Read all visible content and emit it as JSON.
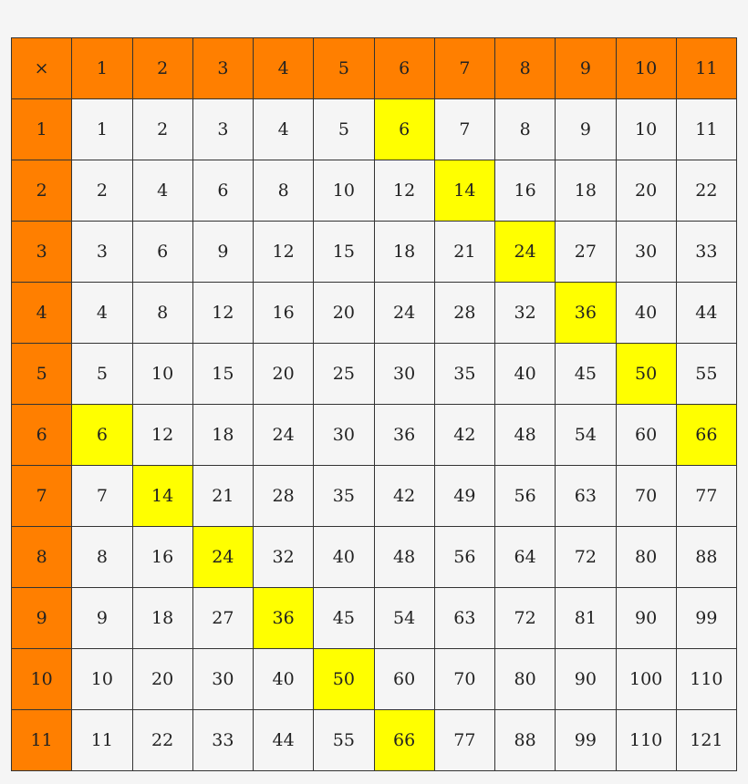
{
  "table": {
    "corner": "×",
    "column_headers": [
      "1",
      "2",
      "3",
      "4",
      "5",
      "6",
      "7",
      "8",
      "9",
      "10",
      "11"
    ],
    "rows": [
      {
        "header": "1",
        "values": [
          "1",
          "2",
          "3",
          "4",
          "5",
          "6",
          "7",
          "8",
          "9",
          "10",
          "11"
        ]
      },
      {
        "header": "2",
        "values": [
          "2",
          "4",
          "6",
          "8",
          "10",
          "12",
          "14",
          "16",
          "18",
          "20",
          "22"
        ]
      },
      {
        "header": "3",
        "values": [
          "3",
          "6",
          "9",
          "12",
          "15",
          "18",
          "21",
          "24",
          "27",
          "30",
          "33"
        ]
      },
      {
        "header": "4",
        "values": [
          "4",
          "8",
          "12",
          "16",
          "20",
          "24",
          "28",
          "32",
          "36",
          "40",
          "44"
        ]
      },
      {
        "header": "5",
        "values": [
          "5",
          "10",
          "15",
          "20",
          "25",
          "30",
          "35",
          "40",
          "45",
          "50",
          "55"
        ]
      },
      {
        "header": "6",
        "values": [
          "6",
          "12",
          "18",
          "24",
          "30",
          "36",
          "42",
          "48",
          "54",
          "60",
          "66"
        ]
      },
      {
        "header": "7",
        "values": [
          "7",
          "14",
          "21",
          "28",
          "35",
          "42",
          "49",
          "56",
          "63",
          "70",
          "77"
        ]
      },
      {
        "header": "8",
        "values": [
          "8",
          "16",
          "24",
          "32",
          "40",
          "48",
          "56",
          "64",
          "72",
          "80",
          "88"
        ]
      },
      {
        "header": "9",
        "values": [
          "9",
          "18",
          "27",
          "36",
          "45",
          "54",
          "63",
          "72",
          "81",
          "90",
          "99"
        ]
      },
      {
        "header": "10",
        "values": [
          "10",
          "20",
          "30",
          "40",
          "50",
          "60",
          "70",
          "80",
          "90",
          "100",
          "110"
        ]
      },
      {
        "header": "11",
        "values": [
          "11",
          "22",
          "33",
          "44",
          "55",
          "66",
          "77",
          "88",
          "99",
          "110",
          "121"
        ]
      }
    ],
    "highlighted_cells": [
      [
        1,
        6
      ],
      [
        2,
        7
      ],
      [
        3,
        8
      ],
      [
        4,
        9
      ],
      [
        5,
        10
      ],
      [
        6,
        11
      ],
      [
        6,
        1
      ],
      [
        7,
        2
      ],
      [
        8,
        3
      ],
      [
        9,
        4
      ],
      [
        10,
        5
      ],
      [
        11,
        6
      ]
    ],
    "colors": {
      "header": "#ff7f00",
      "highlight": "#ffff00",
      "cell": "#f5f5f5",
      "border": "#333333"
    }
  }
}
